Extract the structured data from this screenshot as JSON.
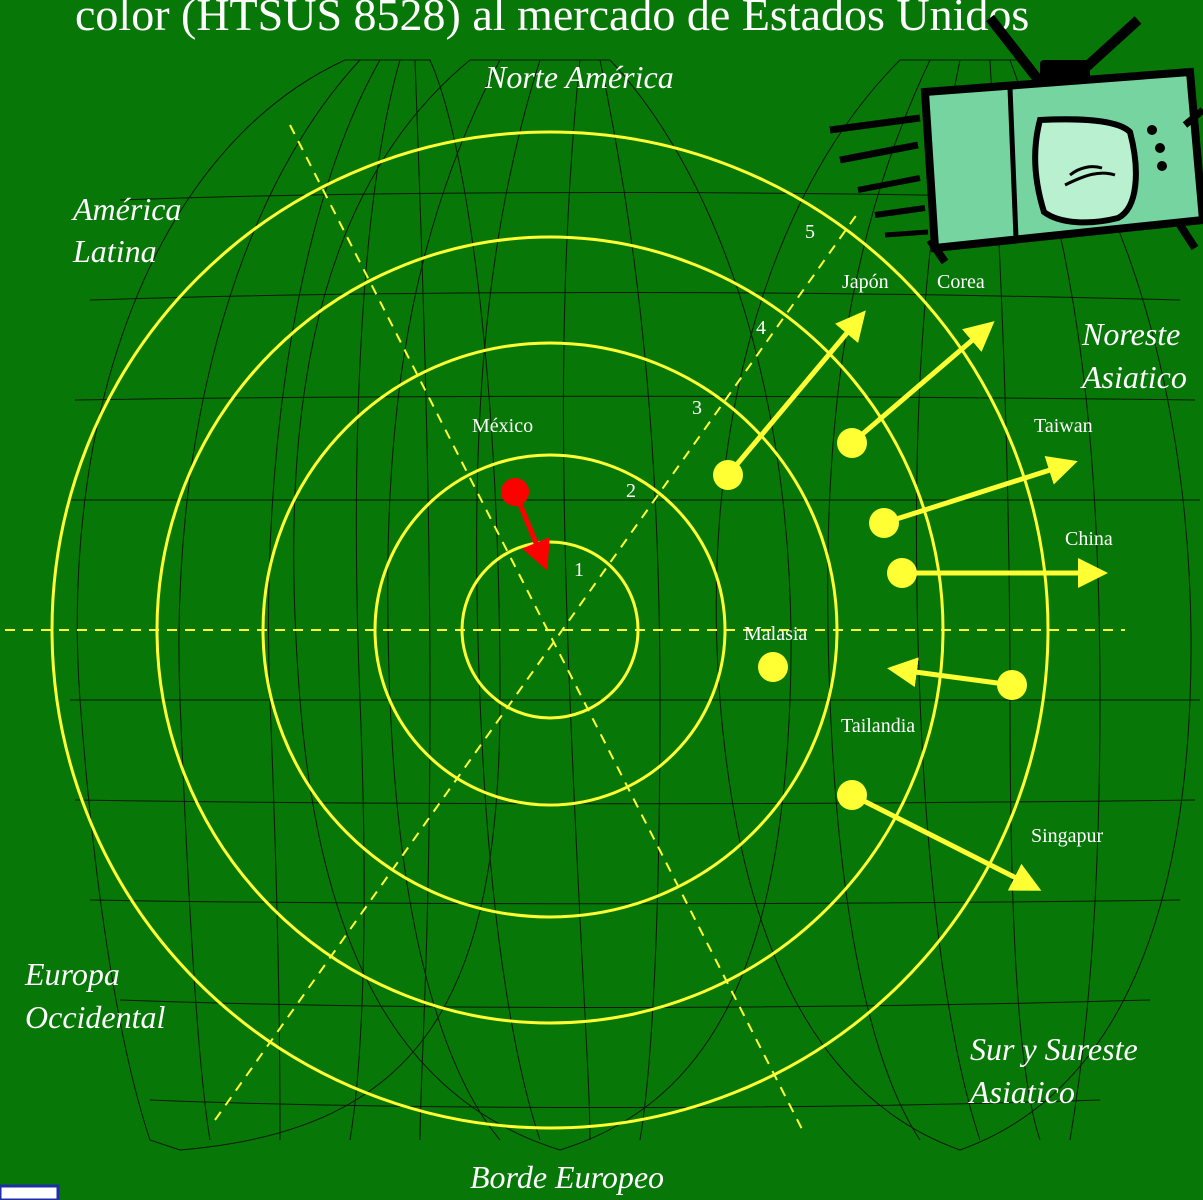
{
  "title": "color (HTSUS 8528) al mercado de Estados Unidos",
  "regions": {
    "north_america": "Norte América",
    "latin_america": [
      "América",
      "Latina"
    ],
    "northeast_asia": [
      "Noreste",
      "Asiatico"
    ],
    "western_europe": [
      "Europa",
      "Occidental"
    ],
    "south_southeast_asia": [
      "Sur y Sureste",
      "Asiatico"
    ],
    "european_border": "Borde Europeo"
  },
  "countries": {
    "mexico": "México",
    "japan": "Japón",
    "korea": "Corea",
    "taiwan": "Taiwan",
    "china": "China",
    "malaysia": "Malasia",
    "thailand": "Tailandia",
    "singapore": "Singapur"
  },
  "ring_numbers": [
    "1",
    "2",
    "3",
    "4",
    "5"
  ],
  "colors": {
    "background": "#077707",
    "rings": "#ffff33",
    "mexico_marker": "#ff0000",
    "text": "#ffffff"
  },
  "icons": {
    "tv": "television-icon"
  }
}
